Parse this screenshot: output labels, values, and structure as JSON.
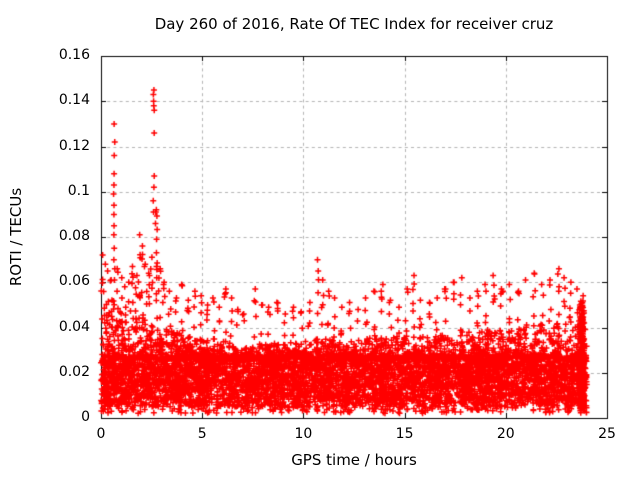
{
  "figure": {
    "title": "Day 260 of 2016, Rate Of TEC Index for receiver cruz",
    "xlabel": "GPS time / hours",
    "ylabel": "ROTI / TECUs"
  },
  "chart_data": {
    "type": "scatter",
    "title": "Day 260 of 2016, Rate Of TEC Index for receiver cruz",
    "xlabel": "GPS time / hours",
    "ylabel": "ROTI / TECUs",
    "xlim": [
      0,
      25
    ],
    "ylim": [
      0,
      0.16
    ],
    "xticks": {
      "values": [
        0,
        5,
        10,
        15,
        20,
        25
      ],
      "labels": [
        "0",
        "5",
        "10",
        "15",
        "20",
        "25"
      ]
    },
    "yticks": {
      "values": [
        0,
        0.02,
        0.04,
        0.06,
        0.08,
        0.1,
        0.12,
        0.14,
        0.16
      ],
      "labels": [
        "0",
        "0.02",
        "0.04",
        "0.06",
        "0.08",
        "0.1",
        "0.12",
        "0.14",
        "0.16"
      ]
    },
    "grid": true,
    "legend": false,
    "marker": {
      "shape": "plus",
      "color": "#ff0000",
      "size": 7,
      "stroke": 1.5
    },
    "grid_color": "#b3b3b3",
    "axis_color": "#000000",
    "series_name": "ROTI",
    "x_data_range": [
      0,
      24
    ],
    "outlier_columns": [
      {
        "x": 0.65,
        "ys": [
          0.13,
          0.122,
          0.116,
          0.108,
          0.103,
          0.099,
          0.094,
          0.09,
          0.085,
          0.081,
          0.075,
          0.07,
          0.066,
          0.061
        ]
      },
      {
        "x": 2.6,
        "ys": [
          0.145,
          0.143,
          0.14,
          0.138,
          0.136,
          0.126,
          0.107,
          0.102,
          0.096,
          0.091
        ]
      },
      {
        "x": 2.72,
        "ys": [
          0.091,
          0.086,
          0.079,
          0.073,
          0.067,
          0.062
        ]
      }
    ],
    "spike_clusters": [
      [
        0.08,
        0.072,
        6
      ],
      [
        0.2,
        0.068,
        5
      ],
      [
        0.32,
        0.065,
        6
      ],
      [
        0.5,
        0.061,
        5
      ],
      [
        0.8,
        0.066,
        6
      ],
      [
        1.0,
        0.062,
        5
      ],
      [
        1.2,
        0.058,
        4
      ],
      [
        1.4,
        0.06,
        5
      ],
      [
        1.55,
        0.067,
        6
      ],
      [
        1.75,
        0.063,
        5
      ],
      [
        1.9,
        0.081,
        7
      ],
      [
        2.05,
        0.076,
        6
      ],
      [
        2.2,
        0.068,
        5
      ],
      [
        2.35,
        0.064,
        5
      ],
      [
        2.5,
        0.071,
        5
      ],
      [
        2.75,
        0.092,
        8
      ],
      [
        2.9,
        0.066,
        5
      ],
      [
        3.1,
        0.06,
        5
      ],
      [
        3.4,
        0.056,
        4
      ],
      [
        3.7,
        0.053,
        4
      ],
      [
        4.0,
        0.059,
        5
      ],
      [
        4.3,
        0.052,
        4
      ],
      [
        4.65,
        0.056,
        4
      ],
      [
        4.95,
        0.054,
        4
      ],
      [
        5.25,
        0.05,
        4
      ],
      [
        5.55,
        0.053,
        4
      ],
      [
        5.85,
        0.049,
        3
      ],
      [
        6.15,
        0.057,
        5
      ],
      [
        6.45,
        0.053,
        4
      ],
      [
        6.75,
        0.048,
        3
      ],
      [
        7.05,
        0.046,
        3
      ],
      [
        7.6,
        0.057,
        5
      ],
      [
        7.95,
        0.05,
        4
      ],
      [
        8.3,
        0.049,
        4
      ],
      [
        8.7,
        0.051,
        4
      ],
      [
        9.1,
        0.046,
        3
      ],
      [
        9.5,
        0.049,
        4
      ],
      [
        9.9,
        0.047,
        3
      ],
      [
        10.3,
        0.051,
        4
      ],
      [
        10.7,
        0.07,
        7
      ],
      [
        10.95,
        0.061,
        5
      ],
      [
        11.25,
        0.056,
        4
      ],
      [
        11.55,
        0.053,
        4
      ],
      [
        11.9,
        0.049,
        4
      ],
      [
        12.3,
        0.051,
        4
      ],
      [
        12.7,
        0.048,
        3
      ],
      [
        13.1,
        0.053,
        4
      ],
      [
        13.5,
        0.056,
        5
      ],
      [
        13.9,
        0.059,
        5
      ],
      [
        14.3,
        0.052,
        4
      ],
      [
        14.7,
        0.049,
        3
      ],
      [
        15.1,
        0.057,
        5
      ],
      [
        15.45,
        0.063,
        6
      ],
      [
        15.8,
        0.052,
        4
      ],
      [
        16.2,
        0.051,
        4
      ],
      [
        16.6,
        0.053,
        4
      ],
      [
        17.0,
        0.057,
        5
      ],
      [
        17.4,
        0.06,
        5
      ],
      [
        17.8,
        0.062,
        5
      ],
      [
        18.2,
        0.053,
        4
      ],
      [
        18.6,
        0.056,
        5
      ],
      [
        19.0,
        0.059,
        5
      ],
      [
        19.4,
        0.063,
        6
      ],
      [
        19.8,
        0.057,
        5
      ],
      [
        20.2,
        0.059,
        5
      ],
      [
        20.6,
        0.056,
        4
      ],
      [
        21.0,
        0.061,
        5
      ],
      [
        21.4,
        0.064,
        6
      ],
      [
        21.8,
        0.059,
        5
      ],
      [
        22.2,
        0.061,
        5
      ],
      [
        22.6,
        0.066,
        6
      ],
      [
        22.9,
        0.062,
        5
      ],
      [
        23.2,
        0.06,
        5
      ],
      [
        23.5,
        0.057,
        4
      ],
      [
        23.8,
        0.054,
        5
      ]
    ],
    "dense_band": {
      "n": 6500,
      "x_range": [
        0,
        24
      ],
      "y_core": [
        0.005,
        0.028
      ],
      "core_fraction": 0.78,
      "envelope_by_hour": [
        0.06,
        0.047,
        0.044,
        0.04,
        0.037,
        0.035,
        0.035,
        0.031,
        0.033,
        0.033,
        0.034,
        0.036,
        0.033,
        0.035,
        0.037,
        0.036,
        0.036,
        0.037,
        0.037,
        0.039,
        0.039,
        0.041,
        0.041,
        0.043,
        0.045
      ],
      "low_tail": {
        "n": 220,
        "y_range": [
          0.002,
          0.006
        ]
      }
    },
    "end_burst": {
      "x_center": 23.75,
      "x_spread": 0.14,
      "n": 430,
      "y_max": 0.052
    },
    "seed": 1337
  }
}
